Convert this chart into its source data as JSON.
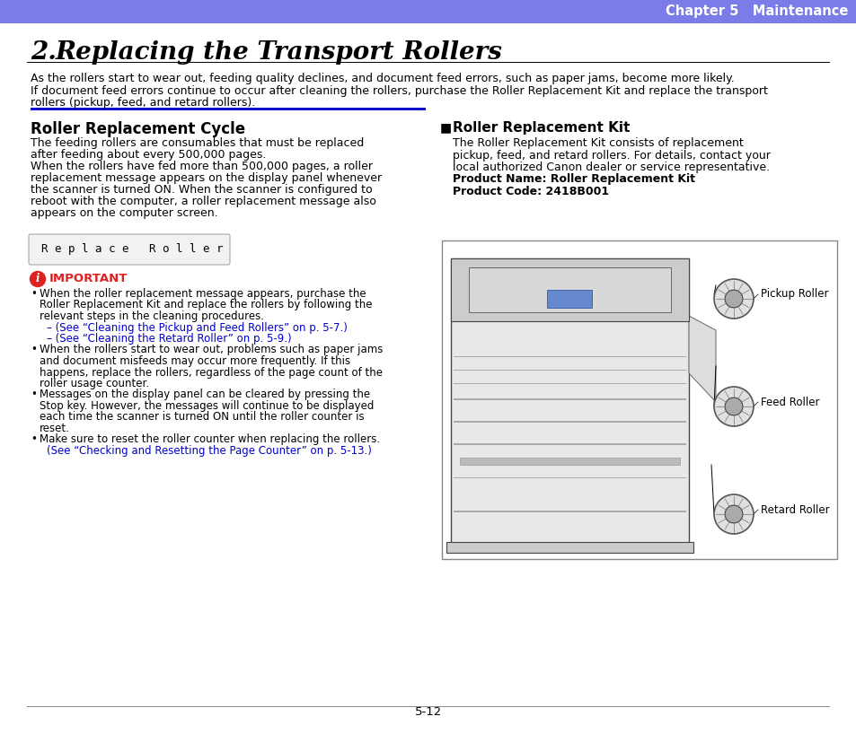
{
  "header_color": "#7B7CE8",
  "header_text": "Chapter 5   Maintenance",
  "header_text_color": "#FFFFFF",
  "title_number": "2.",
  "title_text": " Replacing the Transport Rollers",
  "blue_line_color": "#1111CC",
  "section_heading": "Roller Replacement Cycle",
  "right_heading": "Roller Replacement Kit",
  "page_number": "5-12",
  "link_color": "#0000CC",
  "bg_color": "#FFFFFF"
}
